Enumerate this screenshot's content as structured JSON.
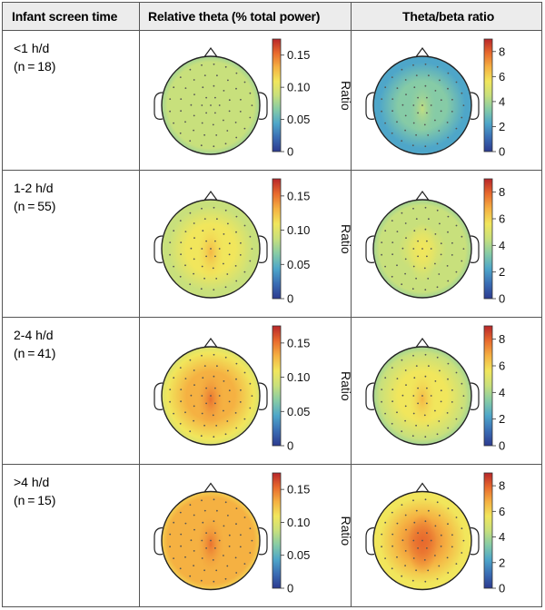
{
  "header": {
    "col1": "Infant screen time",
    "col2": "Relative theta (% total power)",
    "col3": "Theta/beta ratio"
  },
  "rows": [
    {
      "label": "<1 h/d",
      "n": "(n = 18)"
    },
    {
      "label": "1-2 h/d",
      "n": "(n = 55)"
    },
    {
      "label": "2-4 h/d",
      "n": "(n = 41)"
    },
    {
      "label": ">4 h/d",
      "n": "(n = 15)"
    }
  ],
  "colorbars": {
    "relative_theta": {
      "ticks": [
        "0.15",
        "0.10",
        "0.05",
        "0"
      ],
      "label": "Ratio",
      "max": 0.175
    },
    "theta_beta": {
      "ticks": [
        "8",
        "6",
        "4",
        "2",
        "0"
      ],
      "label": "Ratio",
      "max": 9
    }
  },
  "colormap": [
    "#2c3a8f",
    "#3a6db4",
    "#4ea6c9",
    "#86cba6",
    "#c8e07c",
    "#f1e65c",
    "#f5b142",
    "#e86a2d",
    "#b8262a"
  ],
  "topomaps": [
    {
      "row": 0,
      "metric": "relative_theta",
      "level": 0.45,
      "center": 0.5
    },
    {
      "row": 0,
      "metric": "theta_beta",
      "level": 0.3,
      "center": 0.4
    },
    {
      "row": 1,
      "metric": "relative_theta",
      "level": 0.52,
      "center": 0.68
    },
    {
      "row": 1,
      "metric": "theta_beta",
      "level": 0.44,
      "center": 0.6
    },
    {
      "row": 2,
      "metric": "relative_theta",
      "level": 0.6,
      "center": 0.78
    },
    {
      "row": 2,
      "metric": "theta_beta",
      "level": 0.46,
      "center": 0.68
    },
    {
      "row": 3,
      "metric": "relative_theta",
      "level": 0.7,
      "center": 0.8
    },
    {
      "row": 3,
      "metric": "theta_beta",
      "level": 0.62,
      "center": 0.84
    }
  ]
}
